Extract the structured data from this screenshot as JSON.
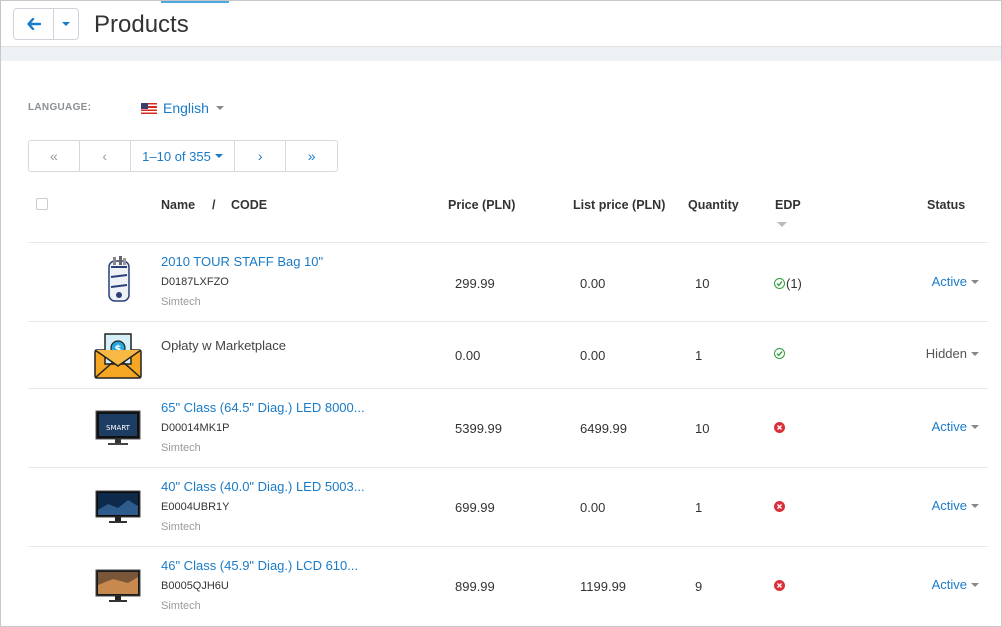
{
  "header": {
    "title": "Products"
  },
  "language": {
    "label": "LANGUAGE:",
    "value": "English"
  },
  "pagination": {
    "range": "1–10 of 355",
    "first": "«",
    "prev": "‹",
    "next": "›",
    "last": "»"
  },
  "table": {
    "headers": {
      "name": "Name",
      "slash": "/",
      "code": "CODE",
      "price": "Price (PLN)",
      "list_price": "List price (PLN)",
      "quantity": "Quantity",
      "edp": "EDP",
      "status": "Status"
    },
    "rows": [
      {
        "name": "2010 TOUR STAFF Bag 10\"",
        "code": "D0187LXFZO",
        "vendor": "Simtech",
        "price": "299.99",
        "list_price": "0.00",
        "quantity": "10",
        "edp": "ok",
        "edp_count": "(1)",
        "status": "Active"
      },
      {
        "name": "Opłaty w Marketplace",
        "code": "",
        "vendor": "",
        "price": "0.00",
        "list_price": "0.00",
        "quantity": "1",
        "edp": "ok",
        "edp_count": "",
        "status": "Hidden"
      },
      {
        "name": "65\" Class (64.5\" Diag.) LED 8000...",
        "code": "D00014MK1P",
        "vendor": "Simtech",
        "price": "5399.99",
        "list_price": "6499.99",
        "quantity": "10",
        "edp": "no",
        "edp_count": "",
        "status": "Active"
      },
      {
        "name": "40\" Class (40.0\" Diag.) LED 5003...",
        "code": "E0004UBR1Y",
        "vendor": "Simtech",
        "price": "699.99",
        "list_price": "0.00",
        "quantity": "1",
        "edp": "no",
        "edp_count": "",
        "status": "Active"
      },
      {
        "name": "46\" Class (45.9\" Diag.) LCD 610...",
        "code": "B0005QJH6U",
        "vendor": "Simtech",
        "price": "899.99",
        "list_price": "1199.99",
        "quantity": "9",
        "edp": "no",
        "edp_count": "",
        "status": "Active"
      }
    ]
  },
  "colors": {
    "link": "#1a7bc7",
    "ok": "#2e9e3e",
    "error": "#d9303a"
  }
}
